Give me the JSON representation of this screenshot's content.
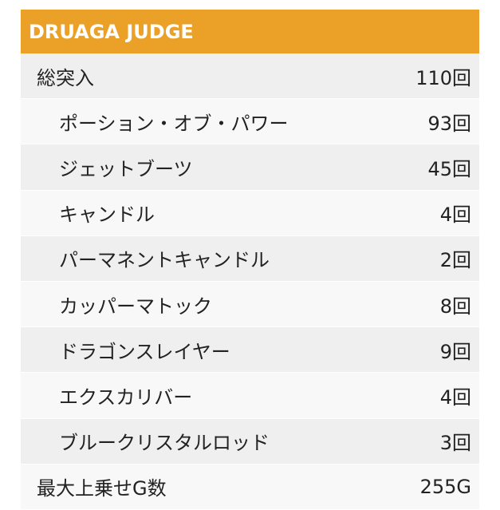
{
  "header": {
    "title": "DRUAGA JUDGE"
  },
  "rows": [
    {
      "label": "総突入",
      "value": "110回",
      "level": "main"
    },
    {
      "label": "ポーション・オブ・パワー",
      "value": "93回",
      "level": "sub"
    },
    {
      "label": "ジェットブーツ",
      "value": "45回",
      "level": "sub"
    },
    {
      "label": "キャンドル",
      "value": "4回",
      "level": "sub"
    },
    {
      "label": "パーマネントキャンドル",
      "value": "2回",
      "level": "sub"
    },
    {
      "label": "カッパーマトック",
      "value": "8回",
      "level": "sub"
    },
    {
      "label": "ドラゴンスレイヤー",
      "value": "9回",
      "level": "sub"
    },
    {
      "label": "エクスカリバー",
      "value": "4回",
      "level": "sub"
    },
    {
      "label": "ブルークリスタルロッド",
      "value": "3回",
      "level": "sub"
    },
    {
      "label": "最大上乗せG数",
      "value": "255G",
      "level": "main"
    }
  ]
}
